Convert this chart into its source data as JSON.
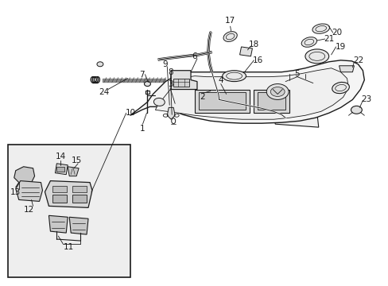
{
  "background_color": "#ffffff",
  "line_color": "#1a1a1a",
  "label_color": "#000000",
  "fig_width": 4.89,
  "fig_height": 3.6,
  "dpi": 100,
  "label_fontsize": 7.5
}
